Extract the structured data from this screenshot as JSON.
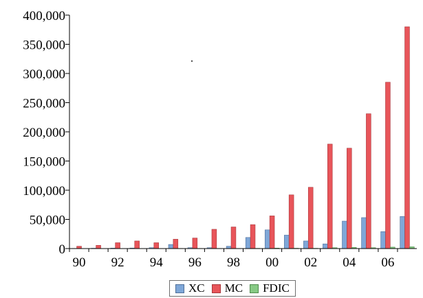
{
  "chart_data": {
    "type": "bar",
    "categories": [
      "90",
      "91",
      "92",
      "93",
      "94",
      "95",
      "96",
      "97",
      "98",
      "99",
      "00",
      "01",
      "02",
      "03",
      "04",
      "05",
      "06",
      "07"
    ],
    "x_tick_labels": [
      "90",
      "92",
      "94",
      "96",
      "98",
      "00",
      "02",
      "04",
      "06"
    ],
    "ylim": [
      0,
      400000
    ],
    "y_ticks": [
      0,
      50000,
      100000,
      150000,
      200000,
      250000,
      300000,
      350000,
      400000
    ],
    "y_tick_labels": [
      "0",
      "50,000",
      "100,000",
      "150,000",
      "200,000",
      "250,000",
      "300,000",
      "350,000",
      "400,000"
    ],
    "grid": false,
    "legend_position": "bottom-center",
    "series": [
      {
        "name": "XC",
        "color": "#7fa7d8",
        "values": [
          300,
          600,
          800,
          900,
          1500,
          7000,
          1500,
          1500,
          4000,
          19000,
          32000,
          23000,
          13000,
          8000,
          47000,
          53000,
          29000,
          55000
        ]
      },
      {
        "name": "MC",
        "color": "#e8555a",
        "values": [
          4000,
          5500,
          10000,
          13000,
          10000,
          16000,
          18000,
          33000,
          37000,
          41000,
          56000,
          92000,
          105000,
          179000,
          172000,
          231000,
          285000,
          380000
        ]
      },
      {
        "name": "FDIC",
        "color": "#86c984",
        "values": [
          200,
          200,
          200,
          200,
          200,
          300,
          300,
          300,
          300,
          400,
          800,
          600,
          500,
          1500,
          2000,
          1500,
          2500,
          3000
        ]
      }
    ]
  }
}
